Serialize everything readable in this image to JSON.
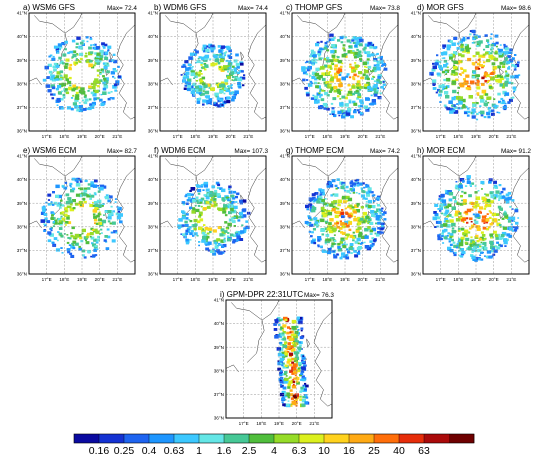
{
  "chart_data": {
    "type": "heatmap",
    "panels": [
      {
        "id": "a",
        "title": "a) WSM6 GFS",
        "max_label": "Max=",
        "max_value": "72.4",
        "pattern": "ring",
        "intensity": 0.75,
        "sx": 0.9,
        "sy": 0.95
      },
      {
        "id": "b",
        "title": "b) WDM6 GFS",
        "max_label": "Max=",
        "max_value": "74.4",
        "pattern": "ring",
        "intensity": 0.7,
        "sx": 0.75,
        "sy": 0.75
      },
      {
        "id": "c",
        "title": "c) THOMP GFS",
        "max_label": "Max=",
        "max_value": "73.8",
        "pattern": "disk",
        "intensity": 0.8,
        "sx": 1.0,
        "sy": 1.0
      },
      {
        "id": "d",
        "title": "d) MOR GFS",
        "max_label": "Max=",
        "max_value": "98.6",
        "pattern": "disk",
        "intensity": 0.9,
        "sx": 1.05,
        "sy": 1.05
      },
      {
        "id": "e",
        "title": "e) WSM6 ECM",
        "max_label": "Max=",
        "max_value": "82.7",
        "pattern": "ring",
        "intensity": 0.78,
        "sx": 0.95,
        "sy": 0.95
      },
      {
        "id": "f",
        "title": "f) WDM6 ECM",
        "max_label": "Max=",
        "max_value": "107.3",
        "pattern": "ring",
        "intensity": 0.72,
        "sx": 0.85,
        "sy": 0.85
      },
      {
        "id": "g",
        "title": "g) THOMP ECM",
        "max_label": "Max=",
        "max_value": "74.2",
        "pattern": "disk",
        "intensity": 0.8,
        "sx": 0.95,
        "sy": 0.95
      },
      {
        "id": "h",
        "title": "h) MOR ECM",
        "max_label": "Max=",
        "max_value": "91.2",
        "pattern": "disk",
        "intensity": 0.88,
        "sx": 1.0,
        "sy": 1.0
      },
      {
        "id": "i",
        "title": "i) GPM-DPR 22:31UTC",
        "max_label": "Max=",
        "max_value": "76.3",
        "pattern": "swath",
        "intensity": 0.82,
        "sx": 0.7,
        "sy": 1.0
      }
    ],
    "lat_ticks": [
      "41°N",
      "40°N",
      "39°N",
      "38°N",
      "37°N",
      "36°N"
    ],
    "lon_ticks": [
      "17°E",
      "18°E",
      "19°E",
      "20°E",
      "21°E"
    ],
    "lat_range": [
      36,
      41
    ],
    "lon_range": [
      16,
      22
    ],
    "colorbar": {
      "labels": [
        "0.16",
        "0.25",
        "0.4",
        "0.63",
        "1",
        "1.6",
        "2.5",
        "4",
        "6.3",
        "10",
        "16",
        "25",
        "40",
        "63"
      ],
      "colors": [
        "#0a0aa0",
        "#1432d2",
        "#1e64f0",
        "#1e96ff",
        "#3cc8ff",
        "#64e6e6",
        "#46c896",
        "#50be3c",
        "#96dc28",
        "#dcf01e",
        "#ffd21e",
        "#ffaa14",
        "#ff6e0a",
        "#e62d0a",
        "#aa0a0a",
        "#6e0000"
      ]
    },
    "grid": "dashed"
  }
}
